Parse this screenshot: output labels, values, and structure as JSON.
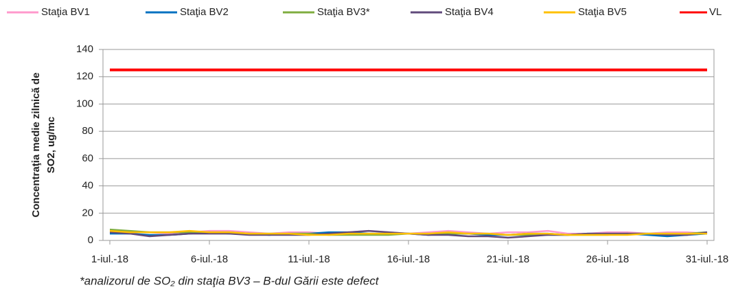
{
  "chart_data": {
    "type": "line",
    "ylabel": [
      "Concentraţia medie zilnică de",
      "SO2, ug/mc"
    ],
    "categories": [
      "1-iul.-18",
      null,
      null,
      null,
      null,
      "6-iul.-18",
      null,
      null,
      null,
      null,
      "11-iul.-18",
      null,
      null,
      null,
      null,
      "16-iul.-18",
      null,
      null,
      null,
      null,
      "21-iul.-18",
      null,
      null,
      null,
      null,
      "26-iul.-18",
      null,
      null,
      null,
      null,
      "31-iul.-18"
    ],
    "series": [
      {
        "name": "Staţia BV1",
        "color": "#ff99cc",
        "values": [
          7,
          6,
          6,
          5,
          6,
          7,
          7,
          6,
          5,
          6,
          6,
          5,
          6,
          7,
          6,
          5,
          6,
          7,
          6,
          5,
          6,
          6,
          7,
          5,
          5,
          6,
          6,
          5,
          6,
          6,
          5
        ]
      },
      {
        "name": "Staţia BV2",
        "color": "#0070c0",
        "values": [
          5,
          5,
          4,
          4,
          5,
          6,
          5,
          5,
          4,
          5,
          5,
          6,
          6,
          5,
          5,
          5,
          4,
          5,
          5,
          4,
          4,
          5,
          5,
          4,
          5,
          5,
          5,
          4,
          3,
          4,
          5
        ]
      },
      {
        "name": "Staţia BV3*",
        "color": "#7fad3f",
        "values": [
          8,
          7,
          6,
          6,
          6,
          6,
          6,
          5,
          5,
          5,
          5,
          4,
          4,
          4,
          4,
          5,
          5,
          5,
          5,
          5,
          4,
          4,
          4,
          4,
          4,
          4,
          5,
          5,
          5,
          5,
          6
        ]
      },
      {
        "name": "Staţia BV4",
        "color": "#604a7b",
        "values": [
          6,
          5,
          3,
          4,
          5,
          5,
          5,
          4,
          4,
          4,
          4,
          5,
          6,
          7,
          6,
          5,
          4,
          4,
          3,
          3,
          2,
          3,
          4,
          4,
          5,
          5,
          5,
          5,
          4,
          4,
          6
        ]
      },
      {
        "name": "Staţia BV5",
        "color": "#ffc000",
        "values": [
          7,
          6,
          6,
          6,
          7,
          6,
          6,
          5,
          5,
          5,
          4,
          4,
          5,
          5,
          5,
          5,
          5,
          6,
          5,
          5,
          4,
          5,
          5,
          4,
          4,
          4,
          4,
          5,
          5,
          5,
          5
        ]
      },
      {
        "name": "VL",
        "color": "#ff0000",
        "values": [
          125,
          125,
          125,
          125,
          125,
          125,
          125,
          125,
          125,
          125,
          125,
          125,
          125,
          125,
          125,
          125,
          125,
          125,
          125,
          125,
          125,
          125,
          125,
          125,
          125,
          125,
          125,
          125,
          125,
          125,
          125
        ]
      }
    ],
    "ylim": [
      0,
      140
    ],
    "yticks": [
      0,
      20,
      40,
      60,
      80,
      100,
      120,
      140
    ],
    "grid": true,
    "legend": "top",
    "footnote": "*analizorul de SO₂ din staţia BV3 – B-dul Gării este defect"
  }
}
